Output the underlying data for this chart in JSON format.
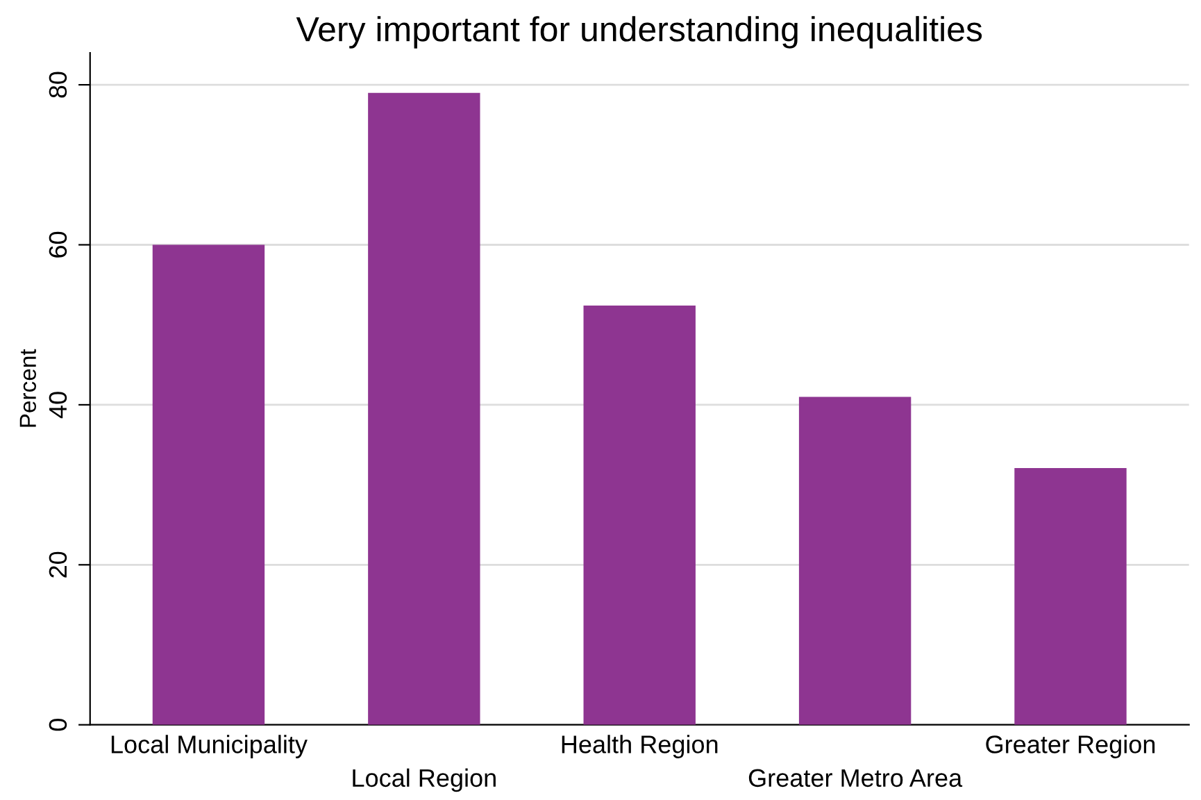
{
  "chart_data": {
    "type": "bar",
    "title": "Very important for understanding inequalities",
    "ylabel": "Percent",
    "categories": [
      "Local Municipality",
      "Local Region",
      "Health Region",
      "Greater Metro Area",
      "Greater Region"
    ],
    "values": [
      60,
      79,
      52.4,
      41,
      32.1
    ],
    "color": "#8e3591",
    "ylim": [
      0,
      84
    ],
    "yticks": [
      0,
      20,
      40,
      60,
      80
    ],
    "grid": "y"
  }
}
